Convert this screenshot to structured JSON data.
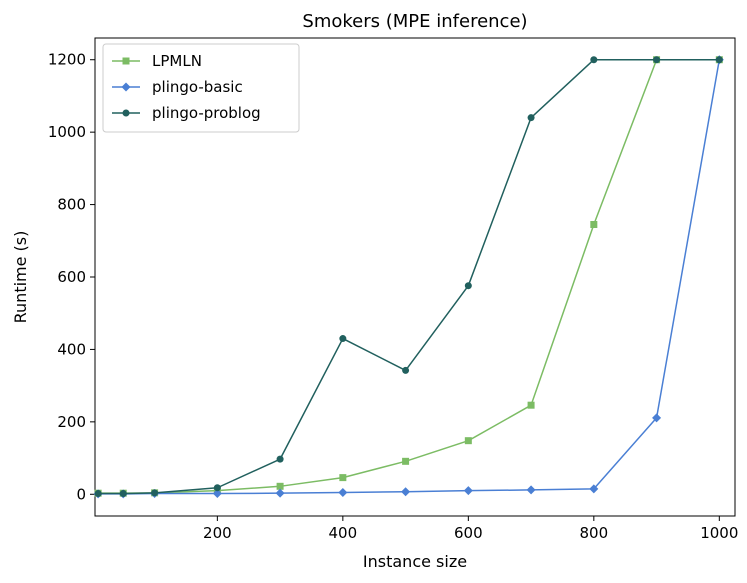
{
  "chart_data": {
    "type": "line",
    "title": "Smokers (MPE inference)",
    "xlabel": "Instance size",
    "ylabel": "Runtime (s)",
    "xlim": [
      5,
      1025
    ],
    "ylim": [
      -60,
      1260
    ],
    "xticks": [
      200,
      400,
      600,
      800,
      1000
    ],
    "yticks": [
      0,
      200,
      400,
      600,
      800,
      1000,
      1200
    ],
    "grid": false,
    "legend": "top-left",
    "series": [
      {
        "name": "LPMLN",
        "color": "#7cbc64",
        "marker": "square",
        "x": [
          10,
          50,
          100,
          200,
          300,
          400,
          500,
          600,
          700,
          800,
          900,
          1000
        ],
        "y": [
          3,
          3,
          4,
          10,
          22,
          46,
          91,
          148,
          246,
          745,
          1200,
          1200
        ]
      },
      {
        "name": "plingo-basic",
        "color": "#4a7fd4",
        "marker": "diamond",
        "x": [
          10,
          50,
          100,
          200,
          300,
          400,
          500,
          600,
          700,
          800,
          900,
          1000
        ],
        "y": [
          1,
          1,
          2,
          2,
          3,
          5,
          7,
          10,
          12,
          15,
          211,
          1200
        ]
      },
      {
        "name": "plingo-problog",
        "color": "#21605e",
        "marker": "circle",
        "x": [
          10,
          50,
          100,
          200,
          300,
          400,
          500,
          600,
          700,
          800,
          900,
          1000
        ],
        "y": [
          2,
          2,
          4,
          18,
          97,
          430,
          342,
          576,
          1040,
          1200,
          1200,
          1200
        ]
      }
    ]
  }
}
